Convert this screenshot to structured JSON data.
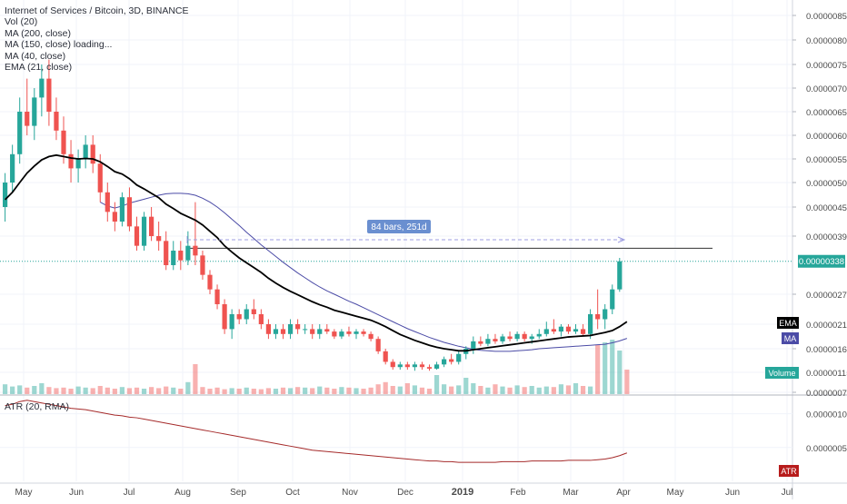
{
  "header": {
    "title": "Internet of Services / Bitcoin, 3D, BINANCE",
    "indicators": [
      "Vol (20)",
      "MA (200, close)",
      "MA (150, close) loading...",
      "MA (40, close)",
      "EMA (21, close)"
    ]
  },
  "chart_data": {
    "type": "candlestick",
    "title": "Internet of Services / Bitcoin, 3D, BINANCE",
    "x_ticks": [
      "May",
      "Jun",
      "Jul",
      "Aug",
      "Sep",
      "Oct",
      "Nov",
      "Dec",
      "2019",
      "Feb",
      "Mar",
      "Apr",
      "May",
      "Jun",
      "Jul"
    ],
    "y_ticks": [
      "0.00000850",
      "0.00000800",
      "0.00000750",
      "0.00000700",
      "0.00000650",
      "0.00000600",
      "0.00000550",
      "0.00000500",
      "0.00000450",
      "0.00000390",
      "0.00000270",
      "0.00000210",
      "0.00000160",
      "0.00000115",
      "0.00000075"
    ],
    "last_price": "0.00000338",
    "candles": [
      {
        "o": 4.5e-06,
        "h": 5.2e-06,
        "l": 4.2e-06,
        "c": 5e-06
      },
      {
        "o": 5e-06,
        "h": 5.8e-06,
        "l": 4.8e-06,
        "c": 5.6e-06
      },
      {
        "o": 5.6e-06,
        "h": 6.8e-06,
        "l": 5.4e-06,
        "c": 6.5e-06
      },
      {
        "o": 6.5e-06,
        "h": 7.2e-06,
        "l": 6e-06,
        "c": 6.2e-06
      },
      {
        "o": 6.2e-06,
        "h": 7e-06,
        "l": 5.9e-06,
        "c": 6.8e-06
      },
      {
        "o": 6.8e-06,
        "h": 7.5e-06,
        "l": 6.4e-06,
        "c": 7.2e-06
      },
      {
        "o": 7.2e-06,
        "h": 7.6e-06,
        "l": 6.2e-06,
        "c": 6.5e-06
      },
      {
        "o": 6.5e-06,
        "h": 6.8e-06,
        "l": 5.9e-06,
        "c": 6.1e-06
      },
      {
        "o": 6.1e-06,
        "h": 6.4e-06,
        "l": 5.4e-06,
        "c": 5.6e-06
      },
      {
        "o": 5.6e-06,
        "h": 5.9e-06,
        "l": 5e-06,
        "c": 5.3e-06
      },
      {
        "o": 5.3e-06,
        "h": 5.7e-06,
        "l": 5e-06,
        "c": 5.5e-06
      },
      {
        "o": 5.5e-06,
        "h": 6e-06,
        "l": 5.3e-06,
        "c": 5.8e-06
      },
      {
        "o": 5.8e-06,
        "h": 6e-06,
        "l": 5.2e-06,
        "c": 5.4e-06
      },
      {
        "o": 5.4e-06,
        "h": 5.6e-06,
        "l": 4.6e-06,
        "c": 4.8e-06
      },
      {
        "o": 4.8e-06,
        "h": 5e-06,
        "l": 4.2e-06,
        "c": 4.4e-06
      },
      {
        "o": 4.4e-06,
        "h": 4.6e-06,
        "l": 4e-06,
        "c": 4.2e-06
      },
      {
        "o": 4.2e-06,
        "h": 4.8e-06,
        "l": 4.1e-06,
        "c": 4.7e-06
      },
      {
        "o": 4.7e-06,
        "h": 4.9e-06,
        "l": 4e-06,
        "c": 4.1e-06
      },
      {
        "o": 4.1e-06,
        "h": 4.3e-06,
        "l": 3.6e-06,
        "c": 3.7e-06
      },
      {
        "o": 3.7e-06,
        "h": 4.4e-06,
        "l": 3.6e-06,
        "c": 4.3e-06
      },
      {
        "o": 4.3e-06,
        "h": 4.5e-06,
        "l": 3.8e-06,
        "c": 3.9e-06
      },
      {
        "o": 3.9e-06,
        "h": 4.2e-06,
        "l": 3.6e-06,
        "c": 3.8e-06
      },
      {
        "o": 3.8e-06,
        "h": 4e-06,
        "l": 3.2e-06,
        "c": 3.3e-06
      },
      {
        "o": 3.3e-06,
        "h": 3.8e-06,
        "l": 3.2e-06,
        "c": 3.6e-06
      },
      {
        "o": 3.6e-06,
        "h": 3.8e-06,
        "l": 3.2e-06,
        "c": 3.4e-06
      },
      {
        "o": 3.4e-06,
        "h": 4e-06,
        "l": 3.3e-06,
        "c": 3.7e-06
      },
      {
        "o": 3.7e-06,
        "h": 4.6e-06,
        "l": 3.3e-06,
        "c": 3.5e-06
      },
      {
        "o": 3.5e-06,
        "h": 3.6e-06,
        "l": 3e-06,
        "c": 3.1e-06
      },
      {
        "o": 3.1e-06,
        "h": 3.2e-06,
        "l": 2.7e-06,
        "c": 2.8e-06
      },
      {
        "o": 2.8e-06,
        "h": 2.9e-06,
        "l": 2.4e-06,
        "c": 2.5e-06
      },
      {
        "o": 2.5e-06,
        "h": 2.6e-06,
        "l": 1.9e-06,
        "c": 2e-06
      },
      {
        "o": 2e-06,
        "h": 2.4e-06,
        "l": 1.8e-06,
        "c": 2.3e-06
      },
      {
        "o": 2.3e-06,
        "h": 2.4e-06,
        "l": 2.1e-06,
        "c": 2.2e-06
      },
      {
        "o": 2.2e-06,
        "h": 2.5e-06,
        "l": 2.1e-06,
        "c": 2.4e-06
      },
      {
        "o": 2.4e-06,
        "h": 2.6e-06,
        "l": 2.2e-06,
        "c": 2.3e-06
      },
      {
        "o": 2.3e-06,
        "h": 2.4e-06,
        "l": 2e-06,
        "c": 2.1e-06
      },
      {
        "o": 2.1e-06,
        "h": 2.2e-06,
        "l": 1.8e-06,
        "c": 1.9e-06
      },
      {
        "o": 1.9e-06,
        "h": 2.1e-06,
        "l": 1.8e-06,
        "c": 2e-06
      },
      {
        "o": 2e-06,
        "h": 2.1e-06,
        "l": 1.8e-06,
        "c": 1.9e-06
      },
      {
        "o": 1.9e-06,
        "h": 2.2e-06,
        "l": 1.8e-06,
        "c": 2.1e-06
      },
      {
        "o": 2.1e-06,
        "h": 2.2e-06,
        "l": 1.9e-06,
        "c": 2e-06
      },
      {
        "o": 2e-06,
        "h": 2.1e-06,
        "l": 1.9e-06,
        "c": 2e-06
      },
      {
        "o": 2e-06,
        "h": 2.1e-06,
        "l": 1.8e-06,
        "c": 1.9e-06
      },
      {
        "o": 1.9e-06,
        "h": 2.1e-06,
        "l": 1.8e-06,
        "c": 2e-06
      },
      {
        "o": 2e-06,
        "h": 2.1e-06,
        "l": 1.9e-06,
        "c": 1.95e-06
      },
      {
        "o": 1.95e-06,
        "h": 2e-06,
        "l": 1.8e-06,
        "c": 1.85e-06
      },
      {
        "o": 1.85e-06,
        "h": 2e-06,
        "l": 1.8e-06,
        "c": 1.95e-06
      },
      {
        "o": 1.95e-06,
        "h": 2.05e-06,
        "l": 1.85e-06,
        "c": 1.9e-06
      },
      {
        "o": 1.9e-06,
        "h": 2e-06,
        "l": 1.8e-06,
        "c": 1.95e-06
      },
      {
        "o": 1.95e-06,
        "h": 2e-06,
        "l": 1.85e-06,
        "c": 1.9e-06
      },
      {
        "o": 1.9e-06,
        "h": 1.95e-06,
        "l": 1.75e-06,
        "c": 1.8e-06
      },
      {
        "o": 1.8e-06,
        "h": 1.85e-06,
        "l": 1.5e-06,
        "c": 1.55e-06
      },
      {
        "o": 1.55e-06,
        "h": 1.6e-06,
        "l": 1.3e-06,
        "c": 1.35e-06
      },
      {
        "o": 1.35e-06,
        "h": 1.4e-06,
        "l": 1.2e-06,
        "c": 1.25e-06
      },
      {
        "o": 1.25e-06,
        "h": 1.35e-06,
        "l": 1.2e-06,
        "c": 1.3e-06
      },
      {
        "o": 1.3e-06,
        "h": 1.35e-06,
        "l": 1.2e-06,
        "c": 1.25e-06
      },
      {
        "o": 1.25e-06,
        "h": 1.35e-06,
        "l": 1.18e-06,
        "c": 1.3e-06
      },
      {
        "o": 1.3e-06,
        "h": 1.35e-06,
        "l": 1.2e-06,
        "c": 1.25e-06
      },
      {
        "o": 1.25e-06,
        "h": 1.3e-06,
        "l": 1.18e-06,
        "c": 1.22e-06
      },
      {
        "o": 1.22e-06,
        "h": 1.35e-06,
        "l": 1.2e-06,
        "c": 1.3e-06
      },
      {
        "o": 1.3e-06,
        "h": 1.45e-06,
        "l": 1.25e-06,
        "c": 1.4e-06
      },
      {
        "o": 1.4e-06,
        "h": 1.5e-06,
        "l": 1.3e-06,
        "c": 1.35e-06
      },
      {
        "o": 1.35e-06,
        "h": 1.55e-06,
        "l": 1.3e-06,
        "c": 1.5e-06
      },
      {
        "o": 1.5e-06,
        "h": 1.65e-06,
        "l": 1.4e-06,
        "c": 1.6e-06
      },
      {
        "o": 1.6e-06,
        "h": 1.85e-06,
        "l": 1.5e-06,
        "c": 1.75e-06
      },
      {
        "o": 1.75e-06,
        "h": 1.85e-06,
        "l": 1.65e-06,
        "c": 1.7e-06
      },
      {
        "o": 1.7e-06,
        "h": 1.9e-06,
        "l": 1.65e-06,
        "c": 1.8e-06
      },
      {
        "o": 1.8e-06,
        "h": 1.9e-06,
        "l": 1.7e-06,
        "c": 1.75e-06
      },
      {
        "o": 1.75e-06,
        "h": 1.9e-06,
        "l": 1.7e-06,
        "c": 1.85e-06
      },
      {
        "o": 1.85e-06,
        "h": 1.95e-06,
        "l": 1.75e-06,
        "c": 1.8e-06
      },
      {
        "o": 1.8e-06,
        "h": 1.95e-06,
        "l": 1.75e-06,
        "c": 1.9e-06
      },
      {
        "o": 1.9e-06,
        "h": 1.95e-06,
        "l": 1.75e-06,
        "c": 1.8e-06
      },
      {
        "o": 1.8e-06,
        "h": 1.9e-06,
        "l": 1.7e-06,
        "c": 1.85e-06
      },
      {
        "o": 1.85e-06,
        "h": 2e-06,
        "l": 1.8e-06,
        "c": 1.9e-06
      },
      {
        "o": 1.9e-06,
        "h": 2.15e-06,
        "l": 1.85e-06,
        "c": 2e-06
      },
      {
        "o": 2e-06,
        "h": 2.2e-06,
        "l": 1.9e-06,
        "c": 1.95e-06
      },
      {
        "o": 1.95e-06,
        "h": 2.1e-06,
        "l": 1.85e-06,
        "c": 2.05e-06
      },
      {
        "o": 2.05e-06,
        "h": 2.1e-06,
        "l": 1.9e-06,
        "c": 1.95e-06
      },
      {
        "o": 1.95e-06,
        "h": 2.1e-06,
        "l": 1.9e-06,
        "c": 2e-06
      },
      {
        "o": 2e-06,
        "h": 2.1e-06,
        "l": 1.85e-06,
        "c": 1.9e-06
      },
      {
        "o": 1.9e-06,
        "h": 2.4e-06,
        "l": 1.8e-06,
        "c": 2.3e-06
      },
      {
        "o": 2.3e-06,
        "h": 2.8e-06,
        "l": 2e-06,
        "c": 2.2e-06
      },
      {
        "o": 2.2e-06,
        "h": 2.5e-06,
        "l": 2e-06,
        "c": 2.4e-06
      },
      {
        "o": 2.4e-06,
        "h": 2.9e-06,
        "l": 2.3e-06,
        "c": 2.8e-06
      },
      {
        "o": 2.8e-06,
        "h": 3.45e-06,
        "l": 2.75e-06,
        "c": 3.38e-06
      }
    ],
    "volume": [
      0.18,
      0.14,
      0.16,
      0.12,
      0.15,
      0.2,
      0.13,
      0.11,
      0.12,
      0.1,
      0.14,
      0.12,
      0.11,
      0.15,
      0.12,
      0.1,
      0.13,
      0.11,
      0.12,
      0.1,
      0.13,
      0.11,
      0.14,
      0.12,
      0.1,
      0.22,
      0.55,
      0.13,
      0.1,
      0.12,
      0.09,
      0.11,
      0.1,
      0.12,
      0.1,
      0.09,
      0.11,
      0.1,
      0.12,
      0.11,
      0.13,
      0.12,
      0.11,
      0.14,
      0.12,
      0.1,
      0.13,
      0.12,
      0.11,
      0.1,
      0.12,
      0.18,
      0.22,
      0.15,
      0.14,
      0.2,
      0.16,
      0.12,
      0.1,
      0.35,
      0.18,
      0.14,
      0.16,
      0.3,
      0.2,
      0.15,
      0.12,
      0.18,
      0.14,
      0.12,
      0.16,
      0.13,
      0.15,
      0.12,
      0.14,
      0.13,
      0.18,
      0.16,
      0.2,
      0.15,
      0.14,
      0.9,
      0.95,
      1.0,
      0.8,
      0.45
    ],
    "ema21": [
      4.65e-06,
      4.8e-06,
      5e-06,
      5.2e-06,
      5.35e-06,
      5.48e-06,
      5.55e-06,
      5.58e-06,
      5.55e-06,
      5.52e-06,
      5.5e-06,
      5.51e-06,
      5.5e-06,
      5.44e-06,
      5.34e-06,
      5.23e-06,
      5.18e-06,
      5.08e-06,
      4.95e-06,
      4.87e-06,
      4.78e-06,
      4.69e-06,
      4.56e-06,
      4.47e-06,
      4.37e-06,
      4.3e-06,
      4.23e-06,
      4.13e-06,
      4e-06,
      3.87e-06,
      3.7e-06,
      3.57e-06,
      3.45e-06,
      3.35e-06,
      3.25e-06,
      3.15e-06,
      3.03e-06,
      2.93e-06,
      2.84e-06,
      2.76e-06,
      2.69e-06,
      2.62e-06,
      2.55e-06,
      2.49e-06,
      2.44e-06,
      2.38e-06,
      2.34e-06,
      2.3e-06,
      2.26e-06,
      2.22e-06,
      2.18e-06,
      2.12e-06,
      2.05e-06,
      1.97e-06,
      1.89e-06,
      1.83e-06,
      1.77e-06,
      1.72e-06,
      1.67e-06,
      1.63e-06,
      1.6e-06,
      1.58e-06,
      1.56e-06,
      1.56e-06,
      1.58e-06,
      1.6e-06,
      1.62e-06,
      1.64e-06,
      1.66e-06,
      1.68e-06,
      1.7e-06,
      1.72e-06,
      1.74e-06,
      1.76e-06,
      1.78e-06,
      1.8e-06,
      1.82e-06,
      1.84e-06,
      1.85e-06,
      1.86e-06,
      1.87e-06,
      1.9e-06,
      1.93e-06,
      1.97e-06,
      2.05e-06,
      2.15e-06
    ],
    "ma40": [
      null,
      null,
      null,
      null,
      null,
      null,
      null,
      null,
      null,
      null,
      null,
      null,
      null,
      4.6e-06,
      4.52e-06,
      4.48e-06,
      4.52e-06,
      4.58e-06,
      4.62e-06,
      4.66e-06,
      4.7e-06,
      4.74e-06,
      4.77e-06,
      4.78e-06,
      4.78e-06,
      4.77e-06,
      4.74e-06,
      4.68e-06,
      4.6e-06,
      4.5e-06,
      4.38e-06,
      4.25e-06,
      4.12e-06,
      3.98e-06,
      3.85e-06,
      3.72e-06,
      3.6e-06,
      3.48e-06,
      3.36e-06,
      3.25e-06,
      3.14e-06,
      3.04e-06,
      2.94e-06,
      2.85e-06,
      2.77e-06,
      2.7e-06,
      2.63e-06,
      2.56e-06,
      2.5e-06,
      2.43e-06,
      2.36e-06,
      2.29e-06,
      2.22e-06,
      2.15e-06,
      2.08e-06,
      2.01e-06,
      1.95e-06,
      1.89e-06,
      1.83e-06,
      1.78e-06,
      1.73e-06,
      1.69e-06,
      1.65e-06,
      1.62e-06,
      1.59e-06,
      1.57e-06,
      1.56e-06,
      1.55e-06,
      1.55e-06,
      1.55e-06,
      1.56e-06,
      1.57e-06,
      1.58e-06,
      1.6e-06,
      1.61e-06,
      1.62e-06,
      1.63e-06,
      1.64e-06,
      1.65e-06,
      1.66e-06,
      1.67e-06,
      1.68e-06,
      1.69e-06,
      1.72e-06,
      1.76e-06,
      1.81e-06
    ],
    "atr": [
      1.12e-06,
      1.14e-06,
      1.18e-06,
      1.2e-06,
      1.18e-06,
      1.16e-06,
      1.14e-06,
      1.12e-06,
      1.1e-06,
      1.08e-06,
      1.07e-06,
      1.06e-06,
      1.04e-06,
      1.02e-06,
      1e-06,
      9.8e-07,
      9.7e-07,
      9.5e-07,
      9.4e-07,
      9.2e-07,
      9e-07,
      8.8e-07,
      8.6e-07,
      8.4e-07,
      8.2e-07,
      8e-07,
      7.8e-07,
      7.6e-07,
      7.4e-07,
      7.2e-07,
      7e-07,
      6.8e-07,
      6.6e-07,
      6.4e-07,
      6.2e-07,
      6e-07,
      5.8e-07,
      5.6e-07,
      5.4e-07,
      5.2e-07,
      5e-07,
      4.8e-07,
      4.6e-07,
      4.5e-07,
      4.4e-07,
      4.3e-07,
      4.2e-07,
      4.1e-07,
      4e-07,
      3.9e-07,
      3.8e-07,
      3.7e-07,
      3.6e-07,
      3.5e-07,
      3.4e-07,
      3.3e-07,
      3.2e-07,
      3.1e-07,
      3e-07,
      3e-07,
      2.9e-07,
      2.9e-07,
      2.8e-07,
      2.8e-07,
      2.8e-07,
      2.8e-07,
      2.8e-07,
      2.8e-07,
      2.9e-07,
      2.9e-07,
      2.9e-07,
      2.9e-07,
      3e-07,
      3e-07,
      3e-07,
      3e-07,
      3e-07,
      3.1e-07,
      3.1e-07,
      3.1e-07,
      3.1e-07,
      3.2e-07,
      3.3e-07,
      3.5e-07,
      3.8e-07,
      4.2e-07
    ],
    "measure": {
      "label": "84 bars, 251d"
    },
    "horizontal_level": 3.65e-06,
    "atr_panel": {
      "label": "ATR (20, RMA)",
      "ticks": [
        "0.00000100",
        "0.00000050"
      ],
      "range": [
        0,
        1.25e-06
      ]
    },
    "badges": {
      "ema": "EMA",
      "ma": "MA",
      "volume": "Volume",
      "atr": "ATR"
    },
    "colors": {
      "up": "#26a69a",
      "down": "#ef5350",
      "ema": "#000000",
      "ma": "#4b4ba6",
      "atr": "#a52a2a",
      "price_label": "#26a69a"
    }
  }
}
